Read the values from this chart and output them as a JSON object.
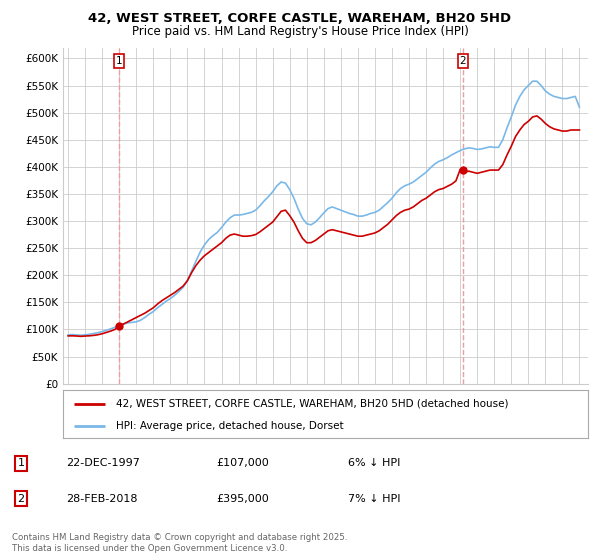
{
  "title": "42, WEST STREET, CORFE CASTLE, WAREHAM, BH20 5HD",
  "subtitle": "Price paid vs. HM Land Registry's House Price Index (HPI)",
  "ylim": [
    0,
    620000
  ],
  "yticks": [
    0,
    50000,
    100000,
    150000,
    200000,
    250000,
    300000,
    350000,
    400000,
    450000,
    500000,
    550000,
    600000
  ],
  "ytick_labels": [
    "£0",
    "£50K",
    "£100K",
    "£150K",
    "£200K",
    "£250K",
    "£300K",
    "£350K",
    "£400K",
    "£450K",
    "£500K",
    "£550K",
    "£600K"
  ],
  "hpi_color": "#7ab8e8",
  "price_color": "#cc0000",
  "vline_color": "#e8a0a0",
  "sale1_date_num": 1997.97,
  "sale1_price": 107000,
  "sale2_date_num": 2018.16,
  "sale2_price": 395000,
  "legend_label1": "42, WEST STREET, CORFE CASTLE, WAREHAM, BH20 5HD (detached house)",
  "legend_label2": "HPI: Average price, detached house, Dorset",
  "copyright_text": "Contains HM Land Registry data © Crown copyright and database right 2025.\nThis data is licensed under the Open Government Licence v3.0.",
  "background_color": "#ffffff",
  "grid_color": "#cccccc",
  "hpi_data": [
    [
      1995.0,
      90000
    ],
    [
      1995.25,
      90500
    ],
    [
      1995.5,
      89800
    ],
    [
      1995.75,
      89200
    ],
    [
      1996.0,
      90000
    ],
    [
      1996.25,
      91000
    ],
    [
      1996.5,
      92500
    ],
    [
      1996.75,
      94000
    ],
    [
      1997.0,
      96000
    ],
    [
      1997.25,
      98500
    ],
    [
      1997.5,
      101000
    ],
    [
      1997.75,
      104000
    ],
    [
      1998.0,
      107000
    ],
    [
      1998.25,
      110000
    ],
    [
      1998.5,
      112000
    ],
    [
      1998.75,
      113000
    ],
    [
      1999.0,
      114000
    ],
    [
      1999.25,
      117000
    ],
    [
      1999.5,
      122000
    ],
    [
      1999.75,
      128000
    ],
    [
      2000.0,
      133000
    ],
    [
      2000.25,
      140000
    ],
    [
      2000.5,
      146000
    ],
    [
      2000.75,
      152000
    ],
    [
      2001.0,
      157000
    ],
    [
      2001.25,
      163000
    ],
    [
      2001.5,
      170000
    ],
    [
      2001.75,
      178000
    ],
    [
      2002.0,
      190000
    ],
    [
      2002.25,
      208000
    ],
    [
      2002.5,
      226000
    ],
    [
      2002.75,
      243000
    ],
    [
      2003.0,
      256000
    ],
    [
      2003.25,
      266000
    ],
    [
      2003.5,
      273000
    ],
    [
      2003.75,
      279000
    ],
    [
      2004.0,
      288000
    ],
    [
      2004.25,
      298000
    ],
    [
      2004.5,
      306000
    ],
    [
      2004.75,
      311000
    ],
    [
      2005.0,
      311000
    ],
    [
      2005.25,
      312000
    ],
    [
      2005.5,
      314000
    ],
    [
      2005.75,
      316000
    ],
    [
      2006.0,
      320000
    ],
    [
      2006.25,
      328000
    ],
    [
      2006.5,
      337000
    ],
    [
      2006.75,
      345000
    ],
    [
      2007.0,
      354000
    ],
    [
      2007.25,
      365000
    ],
    [
      2007.5,
      372000
    ],
    [
      2007.75,
      370000
    ],
    [
      2008.0,
      358000
    ],
    [
      2008.25,
      342000
    ],
    [
      2008.5,
      322000
    ],
    [
      2008.75,
      305000
    ],
    [
      2009.0,
      295000
    ],
    [
      2009.25,
      293000
    ],
    [
      2009.5,
      298000
    ],
    [
      2009.75,
      306000
    ],
    [
      2010.0,
      315000
    ],
    [
      2010.25,
      323000
    ],
    [
      2010.5,
      326000
    ],
    [
      2010.75,
      323000
    ],
    [
      2011.0,
      320000
    ],
    [
      2011.25,
      317000
    ],
    [
      2011.5,
      314000
    ],
    [
      2011.75,
      312000
    ],
    [
      2012.0,
      309000
    ],
    [
      2012.25,
      309000
    ],
    [
      2012.5,
      311000
    ],
    [
      2012.75,
      314000
    ],
    [
      2013.0,
      316000
    ],
    [
      2013.25,
      320000
    ],
    [
      2013.5,
      327000
    ],
    [
      2013.75,
      334000
    ],
    [
      2014.0,
      342000
    ],
    [
      2014.25,
      352000
    ],
    [
      2014.5,
      360000
    ],
    [
      2014.75,
      365000
    ],
    [
      2015.0,
      368000
    ],
    [
      2015.25,
      372000
    ],
    [
      2015.5,
      378000
    ],
    [
      2015.75,
      384000
    ],
    [
      2016.0,
      390000
    ],
    [
      2016.25,
      398000
    ],
    [
      2016.5,
      405000
    ],
    [
      2016.75,
      410000
    ],
    [
      2017.0,
      413000
    ],
    [
      2017.25,
      417000
    ],
    [
      2017.5,
      422000
    ],
    [
      2017.75,
      426000
    ],
    [
      2018.0,
      430000
    ],
    [
      2018.25,
      433000
    ],
    [
      2018.5,
      435000
    ],
    [
      2018.75,
      434000
    ],
    [
      2019.0,
      432000
    ],
    [
      2019.25,
      433000
    ],
    [
      2019.5,
      435000
    ],
    [
      2019.75,
      437000
    ],
    [
      2020.0,
      436000
    ],
    [
      2020.25,
      436000
    ],
    [
      2020.5,
      450000
    ],
    [
      2020.75,
      472000
    ],
    [
      2021.0,
      492000
    ],
    [
      2021.25,
      514000
    ],
    [
      2021.5,
      530000
    ],
    [
      2021.75,
      542000
    ],
    [
      2022.0,
      550000
    ],
    [
      2022.25,
      558000
    ],
    [
      2022.5,
      558000
    ],
    [
      2022.75,
      550000
    ],
    [
      2023.0,
      540000
    ],
    [
      2023.25,
      534000
    ],
    [
      2023.5,
      530000
    ],
    [
      2023.75,
      528000
    ],
    [
      2024.0,
      526000
    ],
    [
      2024.25,
      526000
    ],
    [
      2024.5,
      528000
    ],
    [
      2024.75,
      530000
    ],
    [
      2025.0,
      510000
    ]
  ],
  "price_data": [
    [
      1995.0,
      88000
    ],
    [
      1995.25,
      88200
    ],
    [
      1995.5,
      87800
    ],
    [
      1995.75,
      87200
    ],
    [
      1996.0,
      87800
    ],
    [
      1996.25,
      88200
    ],
    [
      1996.5,
      89000
    ],
    [
      1996.75,
      90200
    ],
    [
      1997.0,
      92000
    ],
    [
      1997.25,
      94500
    ],
    [
      1997.5,
      97000
    ],
    [
      1997.75,
      100000
    ],
    [
      1998.0,
      107000
    ],
    [
      1998.25,
      110000
    ],
    [
      1998.5,
      114000
    ],
    [
      1998.75,
      118000
    ],
    [
      1999.0,
      122000
    ],
    [
      1999.25,
      126000
    ],
    [
      1999.5,
      130000
    ],
    [
      1999.75,
      135000
    ],
    [
      2000.0,
      140000
    ],
    [
      2000.25,
      147000
    ],
    [
      2000.5,
      153000
    ],
    [
      2000.75,
      158000
    ],
    [
      2001.0,
      163000
    ],
    [
      2001.25,
      168000
    ],
    [
      2001.5,
      174000
    ],
    [
      2001.75,
      180000
    ],
    [
      2002.0,
      190000
    ],
    [
      2002.25,
      205000
    ],
    [
      2002.5,
      218000
    ],
    [
      2002.75,
      228000
    ],
    [
      2003.0,
      236000
    ],
    [
      2003.25,
      242000
    ],
    [
      2003.5,
      248000
    ],
    [
      2003.75,
      254000
    ],
    [
      2004.0,
      260000
    ],
    [
      2004.25,
      268000
    ],
    [
      2004.5,
      274000
    ],
    [
      2004.75,
      276000
    ],
    [
      2005.0,
      274000
    ],
    [
      2005.25,
      272000
    ],
    [
      2005.5,
      272000
    ],
    [
      2005.75,
      273000
    ],
    [
      2006.0,
      275000
    ],
    [
      2006.25,
      280000
    ],
    [
      2006.5,
      286000
    ],
    [
      2006.75,
      292000
    ],
    [
      2007.0,
      298000
    ],
    [
      2007.25,
      308000
    ],
    [
      2007.5,
      318000
    ],
    [
      2007.75,
      320000
    ],
    [
      2008.0,
      310000
    ],
    [
      2008.25,
      298000
    ],
    [
      2008.5,
      282000
    ],
    [
      2008.75,
      268000
    ],
    [
      2009.0,
      260000
    ],
    [
      2009.25,
      260000
    ],
    [
      2009.5,
      264000
    ],
    [
      2009.75,
      270000
    ],
    [
      2010.0,
      276000
    ],
    [
      2010.25,
      282000
    ],
    [
      2010.5,
      284000
    ],
    [
      2010.75,
      282000
    ],
    [
      2011.0,
      280000
    ],
    [
      2011.25,
      278000
    ],
    [
      2011.5,
      276000
    ],
    [
      2011.75,
      274000
    ],
    [
      2012.0,
      272000
    ],
    [
      2012.25,
      272000
    ],
    [
      2012.5,
      274000
    ],
    [
      2012.75,
      276000
    ],
    [
      2013.0,
      278000
    ],
    [
      2013.25,
      282000
    ],
    [
      2013.5,
      288000
    ],
    [
      2013.75,
      294000
    ],
    [
      2014.0,
      302000
    ],
    [
      2014.25,
      310000
    ],
    [
      2014.5,
      316000
    ],
    [
      2014.75,
      320000
    ],
    [
      2015.0,
      322000
    ],
    [
      2015.25,
      326000
    ],
    [
      2015.5,
      332000
    ],
    [
      2015.75,
      338000
    ],
    [
      2016.0,
      342000
    ],
    [
      2016.25,
      348000
    ],
    [
      2016.5,
      354000
    ],
    [
      2016.75,
      358000
    ],
    [
      2017.0,
      360000
    ],
    [
      2017.25,
      364000
    ],
    [
      2017.5,
      368000
    ],
    [
      2017.75,
      374000
    ],
    [
      2018.0,
      395000
    ],
    [
      2018.25,
      390000
    ],
    [
      2018.5,
      392000
    ],
    [
      2018.75,
      390000
    ],
    [
      2019.0,
      388000
    ],
    [
      2019.25,
      390000
    ],
    [
      2019.5,
      392000
    ],
    [
      2019.75,
      394000
    ],
    [
      2020.0,
      394000
    ],
    [
      2020.25,
      394000
    ],
    [
      2020.5,
      404000
    ],
    [
      2020.75,
      422000
    ],
    [
      2021.0,
      438000
    ],
    [
      2021.25,
      456000
    ],
    [
      2021.5,
      468000
    ],
    [
      2021.75,
      478000
    ],
    [
      2022.0,
      484000
    ],
    [
      2022.25,
      492000
    ],
    [
      2022.5,
      494000
    ],
    [
      2022.75,
      488000
    ],
    [
      2023.0,
      480000
    ],
    [
      2023.25,
      474000
    ],
    [
      2023.5,
      470000
    ],
    [
      2023.75,
      468000
    ],
    [
      2024.0,
      466000
    ],
    [
      2024.25,
      466000
    ],
    [
      2024.5,
      468000
    ],
    [
      2024.75,
      468000
    ],
    [
      2025.0,
      468000
    ]
  ]
}
